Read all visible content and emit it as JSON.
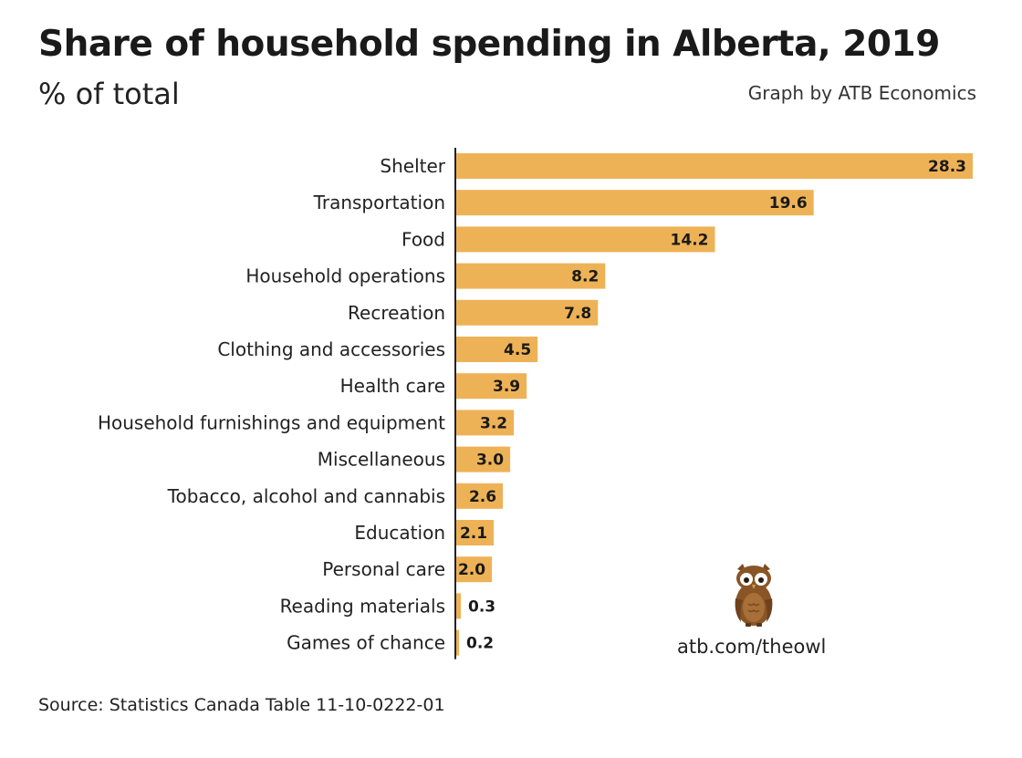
{
  "header": {
    "title": "Share of household spending in Alberta, 2019",
    "subtitle": "% of total",
    "credit": "Graph by ATB Economics"
  },
  "footer": {
    "source": "Source: Statistics Canada Table 11-10-0222-01",
    "link": "atb.com/theowl"
  },
  "colors": {
    "bar": "#EEB256",
    "axis": "#222222"
  },
  "chart_data": {
    "type": "bar",
    "orientation": "horizontal",
    "title": "Share of household spending in Alberta, 2019",
    "subtitle": "% of total",
    "xlabel": "",
    "ylabel": "",
    "xlim": [
      0,
      28.3
    ],
    "grid": false,
    "categories": [
      "Shelter",
      "Transportation",
      "Food",
      "Household operations",
      "Recreation",
      "Clothing and accessories",
      "Health care",
      "Household furnishings and equipment",
      "Miscellaneous",
      "Tobacco, alcohol and cannabis",
      "Education",
      "Personal care",
      "Reading materials",
      "Games of chance"
    ],
    "values": [
      28.3,
      19.6,
      14.2,
      8.2,
      7.8,
      4.5,
      3.9,
      3.2,
      3.0,
      2.6,
      2.1,
      2.0,
      0.3,
      0.2
    ],
    "value_labels": [
      "28.3",
      "19.6",
      "14.2",
      "8.2",
      "7.8",
      "4.5",
      "3.9",
      "3.2",
      "3.0",
      "2.6",
      "2.1",
      "2.0",
      "0.3",
      "0.2"
    ]
  }
}
